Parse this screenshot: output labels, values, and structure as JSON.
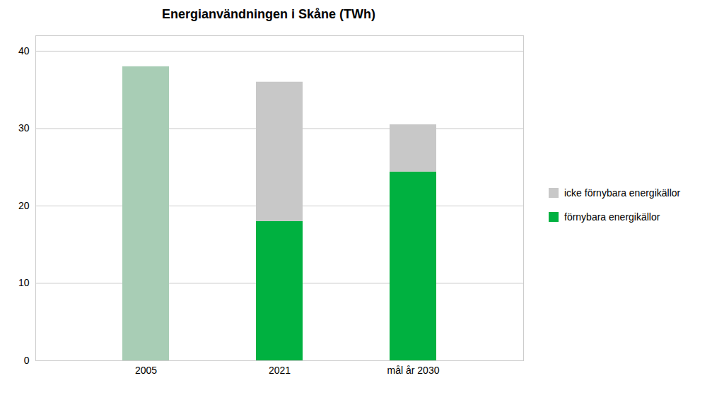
{
  "chart_data": {
    "type": "bar",
    "title": "Energianvändningen i Skåne (TWh)",
    "categories": [
      "2005",
      "2021",
      "mål år 2030"
    ],
    "series": [
      {
        "name": "förnybara energikällor",
        "color": "#00b140",
        "colors": [
          "#a8cdb5",
          "#00b140",
          "#00b140"
        ],
        "values": [
          38.0,
          18.0,
          24.4
        ]
      },
      {
        "name": "icke förnybara energikällor",
        "color": "#c8c8c8",
        "values": [
          0.0,
          18.0,
          6.1
        ]
      }
    ],
    "stacked": true,
    "ylim": [
      0,
      42
    ],
    "yticks": [
      0,
      10,
      20,
      30,
      40
    ],
    "grid": true,
    "legend": "right"
  }
}
